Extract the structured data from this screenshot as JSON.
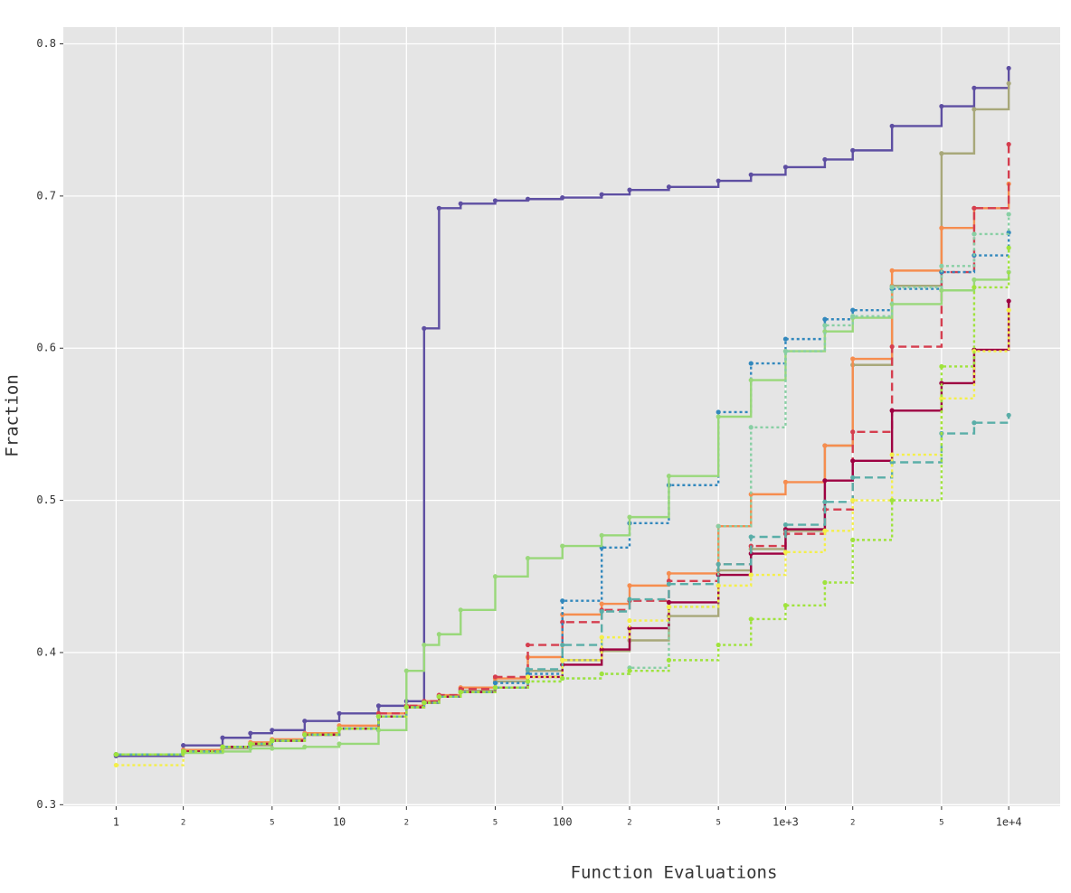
{
  "chart_data": {
    "type": "step",
    "xlabel": "Function Evaluations",
    "ylabel": "Fraction",
    "xscale": "log",
    "grid": true,
    "background": "#e5e5e5",
    "xlim": [
      0.58,
      17000
    ],
    "ylim": [
      0.299,
      0.811
    ],
    "xticks": [
      1,
      2,
      5,
      10,
      {
        "value": 20,
        "label": "2"
      },
      {
        "value": 50,
        "label": "5"
      },
      100,
      {
        "value": 200,
        "label": "2"
      },
      {
        "value": 500,
        "label": "5"
      },
      {
        "value": 1000,
        "label": "1e+3"
      },
      {
        "value": 2000,
        "label": "2"
      },
      {
        "value": 5000,
        "label": "5"
      },
      {
        "value": 10000,
        "label": "1e+4"
      }
    ],
    "yticks": [
      0.3,
      0.4,
      0.5,
      0.6,
      0.7,
      0.8
    ],
    "x": [
      1,
      2,
      3,
      4,
      5,
      7,
      10,
      15,
      20,
      24,
      28,
      35,
      50,
      70,
      100,
      150,
      200,
      300,
      500,
      700,
      1000,
      1500,
      2000,
      3000,
      5000,
      7000,
      10000
    ],
    "series": [
      {
        "color": "#5e4fa2",
        "dash": "solid",
        "values": [
          0.332,
          0.339,
          0.344,
          0.347,
          0.349,
          0.355,
          0.36,
          0.365,
          0.368,
          0.613,
          0.692,
          0.695,
          0.697,
          0.698,
          0.699,
          0.701,
          0.704,
          0.706,
          0.71,
          0.714,
          0.719,
          0.724,
          0.73,
          0.746,
          0.759,
          0.771,
          0.784
        ]
      },
      {
        "color": "#a8a87a",
        "dash": "solid",
        "values": [
          0.333,
          0.336,
          0.337,
          0.339,
          0.342,
          0.346,
          0.35,
          0.358,
          0.364,
          0.367,
          0.371,
          0.375,
          0.381,
          0.388,
          0.395,
          0.401,
          0.408,
          0.424,
          0.454,
          0.468,
          0.48,
          0.536,
          0.589,
          0.641,
          0.728,
          0.757,
          0.774
        ]
      },
      {
        "color": "#f68d4f",
        "dash": "solid",
        "values": [
          0.333,
          0.336,
          0.338,
          0.341,
          0.343,
          0.347,
          0.352,
          0.36,
          0.365,
          0.368,
          0.372,
          0.377,
          0.383,
          0.397,
          0.425,
          0.432,
          0.444,
          0.452,
          0.483,
          0.504,
          0.512,
          0.536,
          0.593,
          0.651,
          0.679,
          0.692,
          0.708
        ]
      },
      {
        "color": "#d53e4f",
        "dash": "dashed",
        "values": [
          0.333,
          0.335,
          0.338,
          0.34,
          0.342,
          0.346,
          0.35,
          0.36,
          0.365,
          0.368,
          0.372,
          0.376,
          0.384,
          0.405,
          0.42,
          0.428,
          0.434,
          0.447,
          0.458,
          0.47,
          0.478,
          0.494,
          0.545,
          0.601,
          0.65,
          0.692,
          0.734
        ]
      },
      {
        "color": "#9e0142",
        "dash": "solid",
        "values": [
          0.333,
          0.335,
          0.338,
          0.34,
          0.342,
          0.346,
          0.35,
          0.358,
          0.364,
          0.367,
          0.371,
          0.374,
          0.377,
          0.384,
          0.392,
          0.402,
          0.416,
          0.433,
          0.451,
          0.465,
          0.481,
          0.513,
          0.526,
          0.559,
          0.577,
          0.599,
          0.631
        ]
      },
      {
        "color": "#3288bd",
        "dash": "dotted",
        "values": [
          0.333,
          0.335,
          0.338,
          0.34,
          0.342,
          0.346,
          0.35,
          0.358,
          0.364,
          0.367,
          0.371,
          0.374,
          0.38,
          0.386,
          0.434,
          0.469,
          0.485,
          0.51,
          0.558,
          0.59,
          0.606,
          0.619,
          0.625,
          0.639,
          0.65,
          0.661,
          0.676
        ]
      },
      {
        "color": "#99d87a",
        "dash": "solid",
        "values": [
          0.333,
          0.334,
          0.335,
          0.337,
          0.337,
          0.338,
          0.34,
          0.349,
          0.388,
          0.405,
          0.412,
          0.428,
          0.45,
          0.462,
          0.47,
          0.477,
          0.489,
          0.516,
          0.555,
          0.579,
          0.598,
          0.611,
          0.62,
          0.629,
          0.638,
          0.645,
          0.65
        ]
      },
      {
        "color": "#88cfa4",
        "dash": "dotted",
        "values": [
          0.333,
          0.335,
          0.338,
          0.34,
          0.342,
          0.346,
          0.35,
          0.358,
          0.364,
          0.367,
          0.371,
          0.374,
          0.377,
          0.381,
          0.383,
          0.386,
          0.39,
          0.43,
          0.483,
          0.548,
          0.598,
          0.615,
          0.621,
          0.64,
          0.654,
          0.675,
          0.688
        ]
      },
      {
        "color": "#5aaea8",
        "dash": "dashed",
        "values": [
          0.333,
          0.335,
          0.338,
          0.34,
          0.342,
          0.346,
          0.35,
          0.358,
          0.364,
          0.367,
          0.371,
          0.374,
          0.377,
          0.389,
          0.405,
          0.427,
          0.435,
          0.445,
          0.458,
          0.476,
          0.484,
          0.499,
          0.515,
          0.525,
          0.544,
          0.551,
          0.556
        ]
      },
      {
        "color": "#f4ef4a",
        "dash": "dotted",
        "values": [
          0.326,
          0.335,
          0.338,
          0.34,
          0.342,
          0.346,
          0.35,
          0.358,
          0.364,
          0.367,
          0.371,
          0.374,
          0.377,
          0.384,
          0.395,
          0.41,
          0.421,
          0.43,
          0.444,
          0.451,
          0.466,
          0.48,
          0.5,
          0.53,
          0.567,
          0.598,
          0.625
        ]
      },
      {
        "color": "#9fe33c",
        "dash": "dotted",
        "values": [
          0.333,
          0.335,
          0.338,
          0.34,
          0.342,
          0.346,
          0.35,
          0.358,
          0.364,
          0.367,
          0.371,
          0.374,
          0.377,
          0.381,
          0.383,
          0.386,
          0.388,
          0.395,
          0.405,
          0.422,
          0.431,
          0.446,
          0.474,
          0.5,
          0.588,
          0.64,
          0.666
        ]
      }
    ]
  }
}
